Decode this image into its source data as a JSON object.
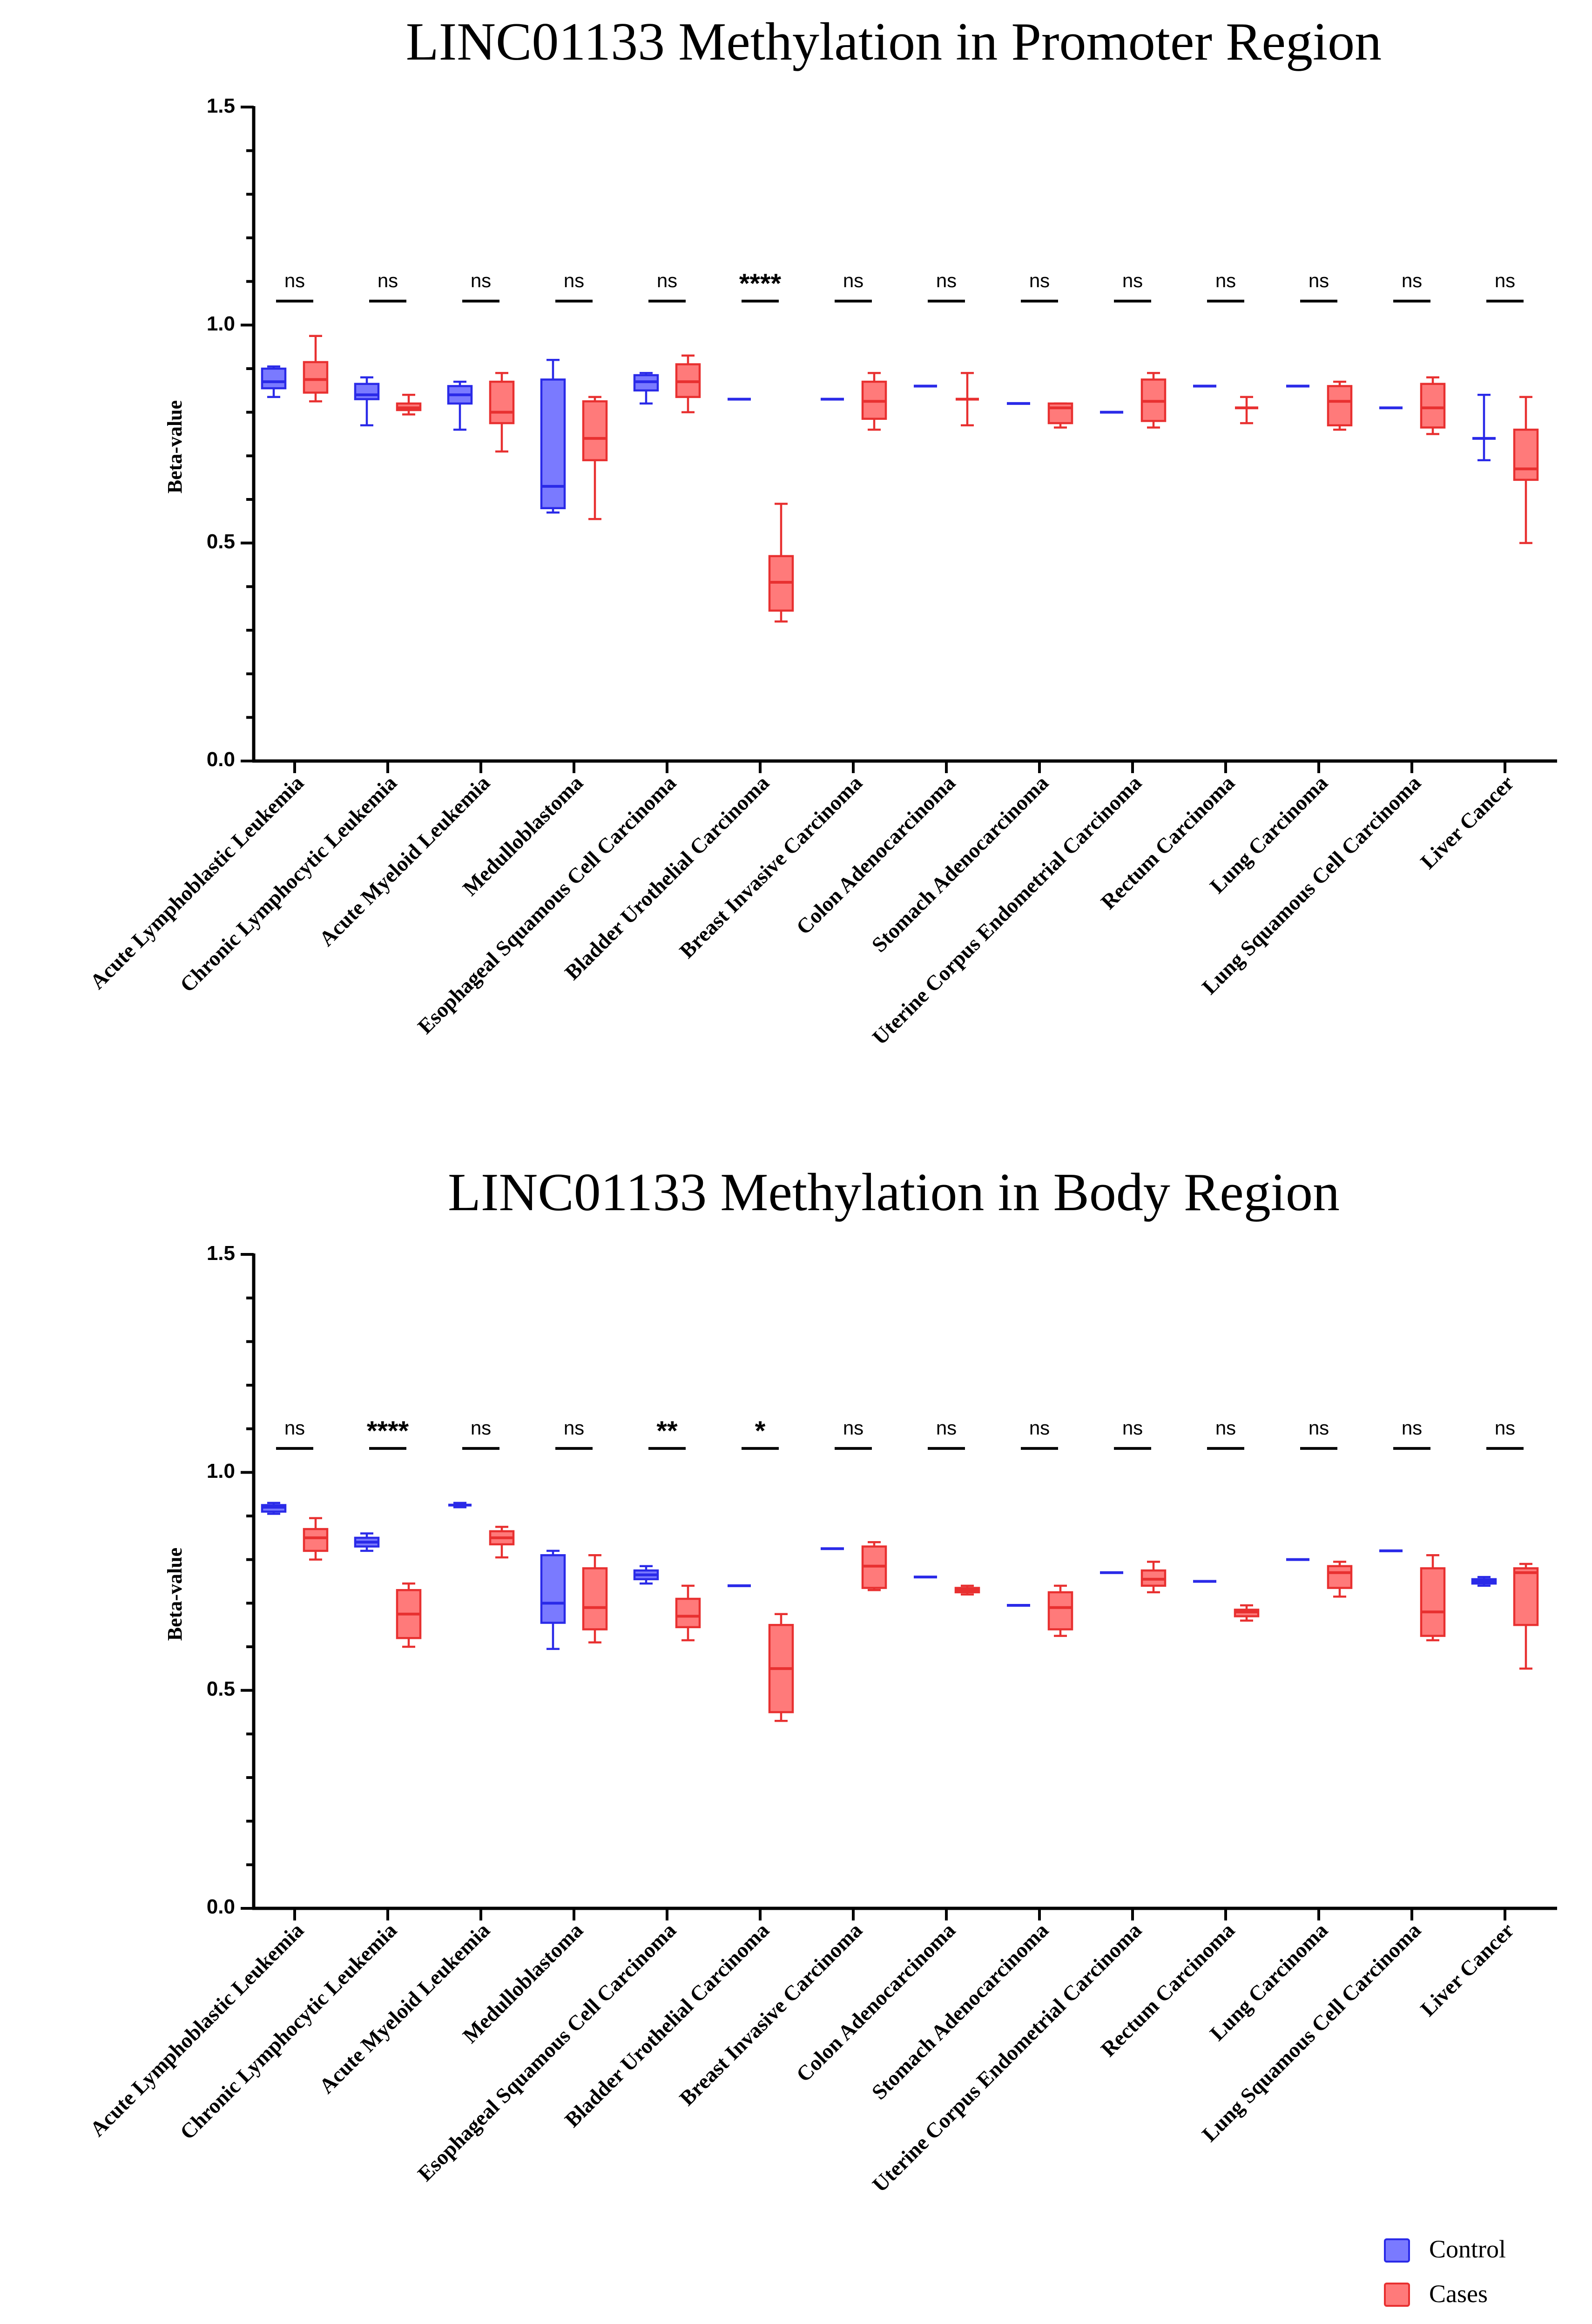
{
  "colors": {
    "control_fill": "#7a7aff",
    "control_stroke": "#2a2ae8",
    "cases_fill": "#ff7a7a",
    "cases_stroke": "#e83030",
    "axis": "#000000"
  },
  "legend": {
    "items": [
      {
        "label": "Control",
        "color_key": "control"
      },
      {
        "label": "Cases",
        "color_key": "cases"
      }
    ]
  },
  "chart_data": [
    {
      "type": "box",
      "title": "LINC01133 Methylation in Promoter Region",
      "ylabel": "Beta-value",
      "ylim": [
        0,
        1.5
      ],
      "yticks": [
        "0.0",
        "0.5",
        "1.0",
        "1.5"
      ],
      "categories": [
        "Acute Lymphoblastic Leukemia",
        "Chronic Lymphocytic Leukemia",
        "Acute Myeloid Leukemia",
        "Medulloblastoma",
        "Esophageal Squamous Cell Carcinoma",
        "Bladder Urothelial Carcinoma",
        "Breast Invasive Carcinoma",
        "Colon Adenocarcinoma",
        "Stomach Adenocarcinoma",
        "Uterine Corpus Endometrial Carcinoma",
        "Rectum Carcinoma",
        "Lung Carcinoma",
        "Lung Squamous Cell Carcinoma",
        "Liver Cancer"
      ],
      "significance": [
        "ns",
        "ns",
        "ns",
        "ns",
        "ns",
        "****",
        "ns",
        "ns",
        "ns",
        "ns",
        "ns",
        "ns",
        "ns",
        "ns"
      ],
      "series": [
        {
          "name": "Control",
          "boxes": [
            [
              0.835,
              0.855,
              0.87,
              0.9,
              0.905
            ],
            [
              0.77,
              0.83,
              0.84,
              0.865,
              0.88
            ],
            [
              0.76,
              0.82,
              0.84,
              0.86,
              0.87
            ],
            [
              0.57,
              0.58,
              0.63,
              0.875,
              0.92
            ],
            [
              0.82,
              0.85,
              0.87,
              0.885,
              0.89
            ],
            [
              0.83,
              0.83,
              0.83,
              0.83,
              0.83
            ],
            [
              0.83,
              0.83,
              0.83,
              0.83,
              0.83
            ],
            [
              0.86,
              0.86,
              0.86,
              0.86,
              0.86
            ],
            [
              0.82,
              0.82,
              0.82,
              0.82,
              0.82
            ],
            [
              0.8,
              0.8,
              0.8,
              0.8,
              0.8
            ],
            [
              0.86,
              0.86,
              0.86,
              0.86,
              0.86
            ],
            [
              0.86,
              0.86,
              0.86,
              0.86,
              0.86
            ],
            [
              0.81,
              0.81,
              0.81,
              0.81,
              0.81
            ],
            [
              0.69,
              0.74,
              0.74,
              0.74,
              0.84
            ]
          ]
        },
        {
          "name": "Cases",
          "boxes": [
            [
              0.825,
              0.845,
              0.875,
              0.915,
              0.975
            ],
            [
              0.795,
              0.805,
              0.81,
              0.82,
              0.84
            ],
            [
              0.71,
              0.775,
              0.8,
              0.87,
              0.89
            ],
            [
              0.555,
              0.69,
              0.74,
              0.825,
              0.835
            ],
            [
              0.8,
              0.835,
              0.87,
              0.91,
              0.93
            ],
            [
              0.32,
              0.345,
              0.41,
              0.47,
              0.59
            ],
            [
              0.76,
              0.785,
              0.825,
              0.87,
              0.89
            ],
            [
              0.77,
              0.83,
              0.83,
              0.83,
              0.89
            ],
            [
              0.765,
              0.775,
              0.81,
              0.82,
              0.82
            ],
            [
              0.765,
              0.78,
              0.825,
              0.875,
              0.89
            ],
            [
              0.775,
              0.81,
              0.81,
              0.81,
              0.835
            ],
            [
              0.76,
              0.77,
              0.825,
              0.86,
              0.87
            ],
            [
              0.75,
              0.765,
              0.81,
              0.865,
              0.88
            ],
            [
              0.5,
              0.645,
              0.67,
              0.76,
              0.835
            ]
          ]
        }
      ]
    },
    {
      "type": "box",
      "title": "LINC01133 Methylation in Body Region",
      "ylabel": "Beta-value",
      "ylim": [
        0,
        1.5
      ],
      "yticks": [
        "0.0",
        "0.5",
        "1.0",
        "1.5"
      ],
      "categories": [
        "Acute Lymphoblastic Leukemia",
        "Chronic Lymphocytic Leukemia",
        "Acute Myeloid Leukemia",
        "Medulloblastoma",
        "Esophageal Squamous Cell Carcinoma",
        "Bladder Urothelial Carcinoma",
        "Breast Invasive Carcinoma",
        "Colon Adenocarcinoma",
        "Stomach Adenocarcinoma",
        "Uterine Corpus Endometrial Carcinoma",
        "Rectum Carcinoma",
        "Lung Carcinoma",
        "Lung Squamous Cell Carcinoma",
        "Liver Cancer"
      ],
      "significance": [
        "ns",
        "****",
        "ns",
        "ns",
        "**",
        "*",
        "ns",
        "ns",
        "ns",
        "ns",
        "ns",
        "ns",
        "ns",
        "ns"
      ],
      "series": [
        {
          "name": "Control",
          "boxes": [
            [
              0.905,
              0.91,
              0.92,
              0.925,
              0.93
            ],
            [
              0.82,
              0.83,
              0.84,
              0.85,
              0.86
            ],
            [
              0.92,
              0.925,
              0.925,
              0.925,
              0.93
            ],
            [
              0.595,
              0.655,
              0.7,
              0.81,
              0.82
            ],
            [
              0.745,
              0.755,
              0.765,
              0.775,
              0.785
            ],
            [
              0.74,
              0.74,
              0.74,
              0.74,
              0.74
            ],
            [
              0.825,
              0.825,
              0.825,
              0.825,
              0.825
            ],
            [
              0.76,
              0.76,
              0.76,
              0.76,
              0.76
            ],
            [
              0.695,
              0.695,
              0.695,
              0.695,
              0.695
            ],
            [
              0.77,
              0.77,
              0.77,
              0.77,
              0.77
            ],
            [
              0.75,
              0.75,
              0.75,
              0.75,
              0.75
            ],
            [
              0.8,
              0.8,
              0.8,
              0.8,
              0.8
            ],
            [
              0.82,
              0.82,
              0.82,
              0.82,
              0.82
            ],
            [
              0.74,
              0.745,
              0.75,
              0.755,
              0.76
            ]
          ]
        },
        {
          "name": "Cases",
          "boxes": [
            [
              0.8,
              0.82,
              0.85,
              0.87,
              0.895
            ],
            [
              0.6,
              0.62,
              0.675,
              0.73,
              0.745
            ],
            [
              0.805,
              0.835,
              0.85,
              0.865,
              0.875
            ],
            [
              0.61,
              0.64,
              0.69,
              0.78,
              0.81
            ],
            [
              0.615,
              0.645,
              0.67,
              0.71,
              0.74
            ],
            [
              0.43,
              0.45,
              0.55,
              0.65,
              0.675
            ],
            [
              0.73,
              0.735,
              0.785,
              0.83,
              0.84
            ],
            [
              0.72,
              0.725,
              0.73,
              0.735,
              0.74
            ],
            [
              0.625,
              0.64,
              0.69,
              0.725,
              0.74
            ],
            [
              0.725,
              0.74,
              0.755,
              0.775,
              0.795
            ],
            [
              0.66,
              0.67,
              0.68,
              0.685,
              0.695
            ],
            [
              0.715,
              0.735,
              0.77,
              0.785,
              0.795
            ],
            [
              0.615,
              0.625,
              0.68,
              0.78,
              0.81
            ],
            [
              0.55,
              0.65,
              0.77,
              0.78,
              0.79
            ]
          ]
        }
      ]
    }
  ]
}
